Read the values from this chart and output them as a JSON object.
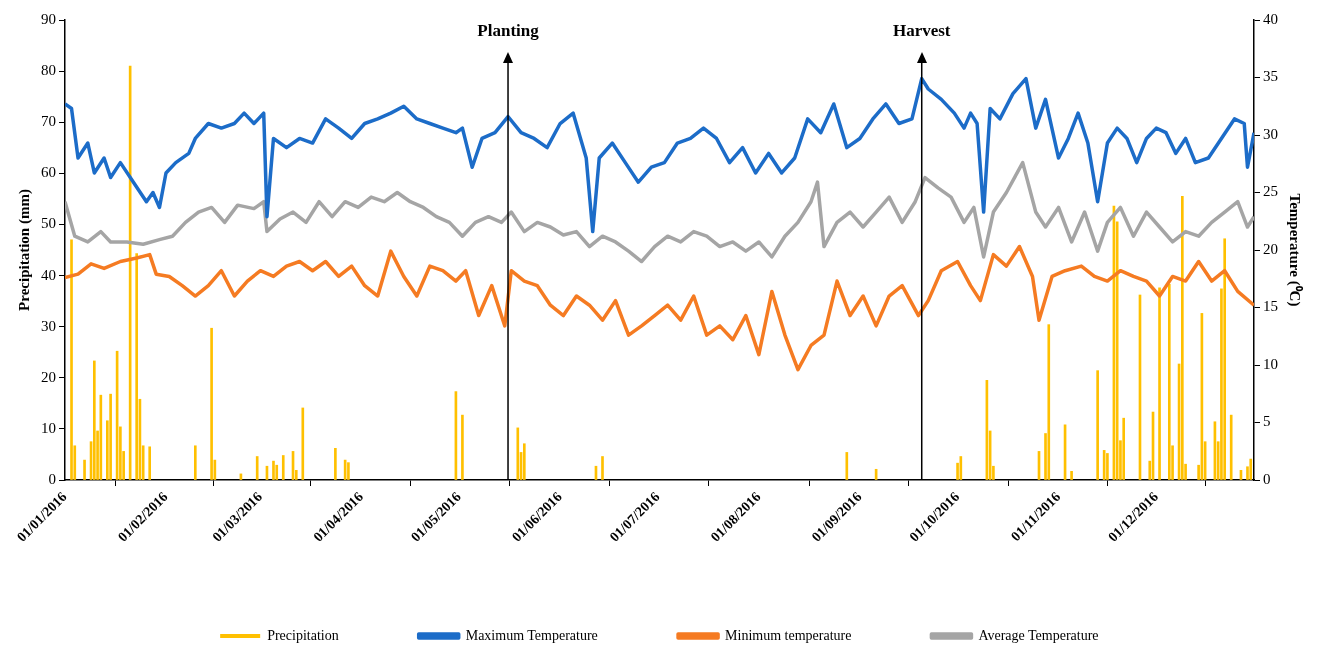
{
  "chart_data": {
    "type": "line",
    "ylabel": "Precipitation (mm)",
    "y2label": "Temperature (⁰C)",
    "legend": "bottom",
    "grid": false,
    "xlim": [
      "2016-01-01",
      "2016-12-31"
    ],
    "xticks": [
      {
        "value": "2016-01-01",
        "label": "01/01/2016"
      },
      {
        "value": "2016-02-01",
        "label": "01/02/2016"
      },
      {
        "value": "2016-03-01",
        "label": "01/03/2016"
      },
      {
        "value": "2016-04-01",
        "label": "01/04/2016"
      },
      {
        "value": "2016-05-01",
        "label": "01/05/2016"
      },
      {
        "value": "2016-06-01",
        "label": "01/06/2016"
      },
      {
        "value": "2016-07-01",
        "label": "01/07/2016"
      },
      {
        "value": "2016-08-01",
        "label": "01/08/2016"
      },
      {
        "value": "2016-09-01",
        "label": "01/09/2016"
      },
      {
        "value": "2016-10-01",
        "label": "01/10/2016"
      },
      {
        "value": "2016-11-01",
        "label": "01/11/2016"
      },
      {
        "value": "2016-12-01",
        "label": "01/12/2016"
      }
    ],
    "ylim": [
      0,
      90
    ],
    "yticks": [
      0,
      10,
      20,
      30,
      40,
      50,
      60,
      70,
      80,
      90
    ],
    "y2lim": [
      0,
      40
    ],
    "y2ticks": [
      0,
      5,
      10,
      15,
      20,
      25,
      30,
      35,
      40
    ],
    "ref_lines": [
      {
        "axis": "x",
        "value": "2016-05-16",
        "label": "Planting"
      },
      {
        "axis": "x",
        "value": "2016-09-20",
        "label": "Harvest"
      }
    ],
    "series": [
      {
        "name": "Precipitation",
        "type": "bar",
        "color": "#ffc000",
        "x": [
          "2016-01-03",
          "2016-01-04",
          "2016-01-07",
          "2016-01-09",
          "2016-01-10",
          "2016-01-11",
          "2016-01-12",
          "2016-01-14",
          "2016-01-15",
          "2016-01-17",
          "2016-01-18",
          "2016-01-19",
          "2016-01-21",
          "2016-01-23",
          "2016-01-24",
          "2016-01-25",
          "2016-01-27",
          "2016-02-10",
          "2016-02-15",
          "2016-02-16",
          "2016-02-24",
          "2016-02-29",
          "2016-03-03",
          "2016-03-05",
          "2016-03-06",
          "2016-03-08",
          "2016-03-11",
          "2016-03-12",
          "2016-03-14",
          "2016-03-24",
          "2016-03-27",
          "2016-03-28",
          "2016-04-30",
          "2016-05-02",
          "2016-05-19",
          "2016-05-20",
          "2016-05-21",
          "2016-06-12",
          "2016-06-14",
          "2016-08-28",
          "2016-09-06",
          "2016-10-01",
          "2016-10-02",
          "2016-10-10",
          "2016-10-11",
          "2016-10-12",
          "2016-10-26",
          "2016-10-28",
          "2016-10-29",
          "2016-11-03",
          "2016-11-05",
          "2016-11-13",
          "2016-11-15",
          "2016-11-16",
          "2016-11-18",
          "2016-11-19",
          "2016-11-20",
          "2016-11-21",
          "2016-11-26",
          "2016-11-29",
          "2016-11-30",
          "2016-12-02",
          "2016-12-05",
          "2016-12-06",
          "2016-12-08",
          "2016-12-09",
          "2016-12-10",
          "2016-12-14",
          "2016-12-15",
          "2016-12-16",
          "2016-12-19",
          "2016-12-20",
          "2016-12-21",
          "2016-12-22",
          "2016-12-24",
          "2016-12-27",
          "2016-12-29",
          "2016-12-30"
        ],
        "values": [
          47,
          6.7,
          3.9,
          7.5,
          23.3,
          9.6,
          16.6,
          11.6,
          16.8,
          25.2,
          10.4,
          5.6,
          81,
          44.3,
          15.8,
          6.7,
          6.5,
          6.7,
          29.7,
          3.9,
          1.2,
          4.6,
          2.7,
          3.7,
          2.9,
          4.8,
          5.6,
          1.9,
          14.1,
          6.2,
          3.9,
          3.4,
          17.3,
          12.7,
          10.2,
          5.4,
          7.1,
          2.7,
          4.6,
          5.4,
          2.1,
          3.3,
          4.6,
          19.5,
          9.6,
          2.7,
          5.6,
          9.1,
          30.4,
          10.8,
          1.7,
          21.4,
          5.8,
          5.2,
          53.6,
          50.5,
          7.7,
          12.1,
          36.2,
          3.7,
          13.3,
          37.6,
          38.3,
          6.7,
          22.7,
          55.5,
          3.1,
          2.9,
          32.6,
          7.5,
          11.4,
          7.5,
          37.4,
          47.2,
          12.7,
          1.9,
          2.6,
          4.1
        ]
      },
      {
        "name": "Maximum Temperature",
        "axis": "y2",
        "color": "#1c6cc8",
        "x": [
          "2016-01-01",
          "2016-01-03",
          "2016-01-05",
          "2016-01-08",
          "2016-01-10",
          "2016-01-13",
          "2016-01-15",
          "2016-01-18",
          "2016-01-22",
          "2016-01-26",
          "2016-01-28",
          "2016-01-30",
          "2016-02-01",
          "2016-02-04",
          "2016-02-08",
          "2016-02-10",
          "2016-02-14",
          "2016-02-18",
          "2016-02-22",
          "2016-02-25",
          "2016-02-28",
          "2016-03-02",
          "2016-03-03",
          "2016-03-05",
          "2016-03-09",
          "2016-03-13",
          "2016-03-17",
          "2016-03-21",
          "2016-03-25",
          "2016-03-29",
          "2016-04-02",
          "2016-04-06",
          "2016-04-10",
          "2016-04-14",
          "2016-04-18",
          "2016-04-22",
          "2016-04-26",
          "2016-04-30",
          "2016-05-02",
          "2016-05-05",
          "2016-05-08",
          "2016-05-12",
          "2016-05-16",
          "2016-05-20",
          "2016-05-24",
          "2016-05-28",
          "2016-06-01",
          "2016-06-05",
          "2016-06-09",
          "2016-06-11",
          "2016-06-13",
          "2016-06-17",
          "2016-06-21",
          "2016-06-25",
          "2016-06-29",
          "2016-07-03",
          "2016-07-07",
          "2016-07-11",
          "2016-07-15",
          "2016-07-19",
          "2016-07-23",
          "2016-07-27",
          "2016-07-31",
          "2016-08-04",
          "2016-08-08",
          "2016-08-12",
          "2016-08-16",
          "2016-08-20",
          "2016-08-24",
          "2016-08-28",
          "2016-09-01",
          "2016-09-05",
          "2016-09-09",
          "2016-09-13",
          "2016-09-17",
          "2016-09-20",
          "2016-09-22",
          "2016-09-26",
          "2016-09-30",
          "2016-10-03",
          "2016-10-05",
          "2016-10-07",
          "2016-10-09",
          "2016-10-11",
          "2016-10-14",
          "2016-10-18",
          "2016-10-22",
          "2016-10-25",
          "2016-10-28",
          "2016-11-01",
          "2016-11-04",
          "2016-11-07",
          "2016-11-10",
          "2016-11-13",
          "2016-11-16",
          "2016-11-19",
          "2016-11-22",
          "2016-11-25",
          "2016-11-28",
          "2016-12-01",
          "2016-12-04",
          "2016-12-07",
          "2016-12-10",
          "2016-12-13",
          "2016-12-17",
          "2016-12-21",
          "2016-12-25",
          "2016-12-28",
          "2016-12-29",
          "2016-12-31"
        ],
        "values": [
          32.7,
          32.3,
          28.0,
          29.3,
          26.7,
          28.0,
          26.3,
          27.6,
          25.9,
          24.2,
          25.0,
          23.7,
          26.7,
          27.6,
          28.4,
          29.7,
          31.0,
          30.6,
          31.0,
          31.9,
          31.0,
          31.9,
          22.9,
          29.7,
          28.9,
          29.7,
          29.3,
          31.4,
          30.6,
          29.7,
          31.0,
          31.4,
          31.9,
          32.5,
          31.4,
          31.0,
          30.6,
          30.2,
          30.6,
          27.2,
          29.7,
          30.2,
          31.6,
          30.2,
          29.7,
          28.9,
          31.0,
          31.9,
          28.0,
          21.6,
          28.0,
          29.3,
          27.6,
          25.9,
          27.2,
          27.6,
          29.3,
          29.7,
          30.6,
          29.7,
          27.6,
          28.9,
          26.7,
          28.4,
          26.7,
          28.0,
          31.4,
          30.2,
          32.7,
          28.9,
          29.7,
          31.4,
          32.7,
          31.0,
          31.4,
          34.9,
          34.0,
          33.1,
          31.9,
          30.6,
          31.9,
          31.0,
          23.3,
          32.3,
          31.4,
          33.6,
          34.9,
          30.6,
          33.1,
          28.0,
          29.7,
          31.9,
          29.3,
          24.2,
          29.3,
          30.6,
          29.7,
          27.6,
          29.7,
          30.6,
          30.2,
          28.4,
          29.7,
          27.6,
          28.0,
          29.7,
          31.4,
          31.0,
          27.2,
          30.2
        ]
      },
      {
        "name": "Minimum temperature",
        "axis": "y2",
        "color": "#f57b22",
        "x": [
          "2016-01-01",
          "2016-01-05",
          "2016-01-09",
          "2016-01-13",
          "2016-01-18",
          "2016-01-23",
          "2016-01-27",
          "2016-01-29",
          "2016-02-02",
          "2016-02-06",
          "2016-02-10",
          "2016-02-14",
          "2016-02-18",
          "2016-02-22",
          "2016-02-26",
          "2016-03-01",
          "2016-03-05",
          "2016-03-09",
          "2016-03-13",
          "2016-03-17",
          "2016-03-21",
          "2016-03-25",
          "2016-03-29",
          "2016-04-02",
          "2016-04-06",
          "2016-04-10",
          "2016-04-14",
          "2016-04-18",
          "2016-04-22",
          "2016-04-26",
          "2016-04-30",
          "2016-05-03",
          "2016-05-07",
          "2016-05-11",
          "2016-05-15",
          "2016-05-17",
          "2016-05-21",
          "2016-05-25",
          "2016-05-29",
          "2016-06-02",
          "2016-06-06",
          "2016-06-10",
          "2016-06-14",
          "2016-06-18",
          "2016-06-22",
          "2016-06-26",
          "2016-06-30",
          "2016-07-04",
          "2016-07-08",
          "2016-07-12",
          "2016-07-16",
          "2016-07-20",
          "2016-07-24",
          "2016-07-28",
          "2016-08-01",
          "2016-08-05",
          "2016-08-09",
          "2016-08-13",
          "2016-08-17",
          "2016-08-21",
          "2016-08-25",
          "2016-08-29",
          "2016-09-02",
          "2016-09-06",
          "2016-09-10",
          "2016-09-14",
          "2016-09-19",
          "2016-09-22",
          "2016-09-26",
          "2016-10-01",
          "2016-10-05",
          "2016-10-08",
          "2016-10-12",
          "2016-10-16",
          "2016-10-20",
          "2016-10-24",
          "2016-10-26",
          "2016-10-30",
          "2016-11-03",
          "2016-11-08",
          "2016-11-12",
          "2016-11-16",
          "2016-11-20",
          "2016-11-24",
          "2016-11-28",
          "2016-12-02",
          "2016-12-06",
          "2016-12-10",
          "2016-12-14",
          "2016-12-18",
          "2016-12-22",
          "2016-12-26",
          "2016-12-31"
        ],
        "values": [
          17.6,
          17.9,
          18.8,
          18.4,
          19.0,
          19.3,
          19.6,
          17.9,
          17.7,
          16.9,
          16.0,
          16.9,
          18.2,
          16.0,
          17.3,
          18.2,
          17.7,
          18.6,
          19.0,
          18.2,
          19.0,
          17.7,
          18.6,
          16.9,
          16.0,
          19.9,
          17.7,
          16.0,
          18.6,
          18.2,
          17.3,
          18.2,
          14.3,
          16.9,
          13.4,
          18.2,
          17.3,
          16.9,
          15.2,
          14.3,
          16.0,
          15.2,
          13.9,
          15.6,
          12.6,
          13.4,
          14.3,
          15.2,
          13.9,
          16.0,
          12.6,
          13.4,
          12.2,
          14.3,
          10.9,
          16.4,
          12.6,
          9.6,
          11.7,
          12.6,
          17.3,
          14.3,
          16.0,
          13.4,
          16.0,
          16.9,
          14.3,
          15.6,
          18.2,
          19.0,
          16.9,
          15.6,
          19.6,
          18.6,
          20.3,
          17.7,
          13.9,
          17.7,
          18.2,
          18.6,
          17.7,
          17.3,
          18.2,
          17.7,
          17.3,
          16.0,
          17.7,
          17.3,
          19.0,
          17.3,
          18.2,
          16.4,
          15.2
        ]
      },
      {
        "name": "Average Temperature",
        "axis": "y2",
        "color": "#a5a5a5",
        "x": [
          "2016-01-01",
          "2016-01-04",
          "2016-01-08",
          "2016-01-12",
          "2016-01-15",
          "2016-01-20",
          "2016-01-25",
          "2016-01-30",
          "2016-02-03",
          "2016-02-07",
          "2016-02-11",
          "2016-02-15",
          "2016-02-19",
          "2016-02-23",
          "2016-02-28",
          "2016-03-02",
          "2016-03-03",
          "2016-03-07",
          "2016-03-11",
          "2016-03-15",
          "2016-03-19",
          "2016-03-23",
          "2016-03-27",
          "2016-03-31",
          "2016-04-04",
          "2016-04-08",
          "2016-04-12",
          "2016-04-16",
          "2016-04-20",
          "2016-04-24",
          "2016-04-28",
          "2016-05-02",
          "2016-05-06",
          "2016-05-10",
          "2016-05-14",
          "2016-05-17",
          "2016-05-21",
          "2016-05-25",
          "2016-05-29",
          "2016-06-02",
          "2016-06-06",
          "2016-06-10",
          "2016-06-14",
          "2016-06-18",
          "2016-06-22",
          "2016-06-26",
          "2016-06-30",
          "2016-07-04",
          "2016-07-08",
          "2016-07-12",
          "2016-07-16",
          "2016-07-20",
          "2016-07-24",
          "2016-07-28",
          "2016-08-01",
          "2016-08-05",
          "2016-08-09",
          "2016-08-13",
          "2016-08-17",
          "2016-08-19",
          "2016-08-21",
          "2016-08-25",
          "2016-08-29",
          "2016-09-02",
          "2016-09-06",
          "2016-09-10",
          "2016-09-14",
          "2016-09-18",
          "2016-09-21",
          "2016-09-25",
          "2016-09-29",
          "2016-10-03",
          "2016-10-06",
          "2016-10-09",
          "2016-10-12",
          "2016-10-16",
          "2016-10-21",
          "2016-10-25",
          "2016-10-28",
          "2016-11-01",
          "2016-11-05",
          "2016-11-09",
          "2016-11-13",
          "2016-11-16",
          "2016-11-20",
          "2016-11-24",
          "2016-11-28",
          "2016-12-02",
          "2016-12-06",
          "2016-12-10",
          "2016-12-14",
          "2016-12-18",
          "2016-12-22",
          "2016-12-26",
          "2016-12-29",
          "2016-12-31"
        ],
        "values": [
          24.2,
          21.2,
          20.7,
          21.6,
          20.7,
          20.7,
          20.5,
          20.9,
          21.2,
          22.4,
          23.3,
          23.7,
          22.4,
          23.9,
          23.6,
          24.2,
          21.6,
          22.7,
          23.3,
          22.4,
          24.2,
          22.9,
          24.2,
          23.7,
          24.6,
          24.2,
          25.0,
          24.2,
          23.7,
          22.9,
          22.4,
          21.2,
          22.4,
          22.9,
          22.4,
          23.3,
          21.6,
          22.4,
          22.0,
          21.3,
          21.6,
          20.3,
          21.2,
          20.7,
          19.9,
          19.0,
          20.3,
          21.2,
          20.7,
          21.6,
          21.2,
          20.3,
          20.7,
          19.9,
          20.7,
          19.4,
          21.2,
          22.4,
          24.2,
          25.9,
          20.3,
          22.4,
          23.3,
          22.0,
          23.3,
          24.6,
          22.4,
          24.2,
          26.3,
          25.4,
          24.6,
          22.4,
          23.7,
          19.4,
          23.3,
          25.0,
          27.6,
          23.3,
          22.0,
          23.7,
          20.7,
          23.3,
          19.9,
          22.4,
          23.7,
          21.2,
          23.3,
          22.0,
          20.7,
          21.6,
          21.2,
          22.4,
          23.3,
          24.2,
          22.0,
          22.9
        ]
      }
    ]
  }
}
